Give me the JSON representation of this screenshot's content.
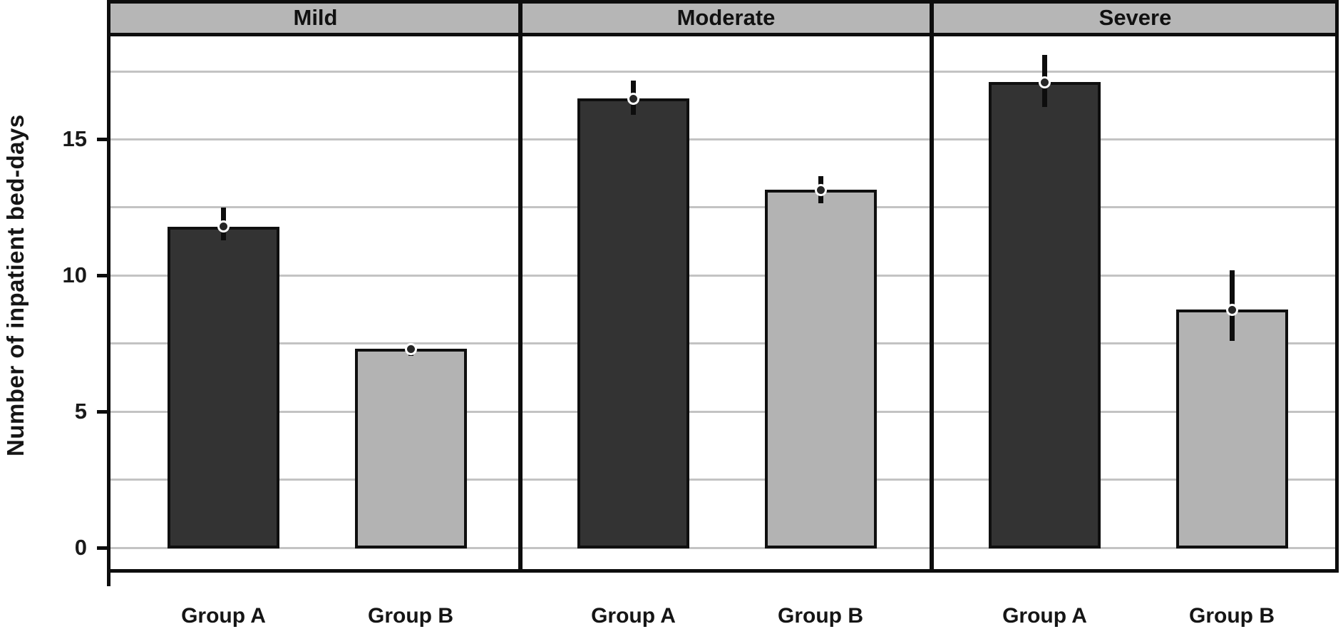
{
  "figure": {
    "background": "#ffffff"
  },
  "chart_data": {
    "type": "bar",
    "title": "",
    "ylabel": "Number of inpatient bed-days",
    "xlabel": "",
    "ylim": [
      0,
      18.8
    ],
    "yticks": [
      0,
      5,
      10,
      15
    ],
    "ytick_labels": [
      "0",
      "5",
      "10",
      "15"
    ],
    "gridlines": [
      0,
      2.5,
      5,
      7.5,
      10,
      12.5,
      15,
      17.5
    ],
    "grid_on": true,
    "legend_position": "none",
    "categories": [
      "Group A",
      "Group B"
    ],
    "panels": [
      {
        "label": "Mild",
        "bars": [
          {
            "group": "Group A",
            "value": 11.8,
            "ci_low": 11.3,
            "ci_high": 12.5,
            "fill": "#333333"
          },
          {
            "group": "Group B",
            "value": 7.3,
            "ci_low": 7.05,
            "ci_high": 7.5,
            "fill": "#b3b3b3"
          }
        ]
      },
      {
        "label": "Moderate",
        "bars": [
          {
            "group": "Group A",
            "value": 16.5,
            "ci_low": 15.9,
            "ci_high": 17.15,
            "fill": "#333333"
          },
          {
            "group": "Group B",
            "value": 13.15,
            "ci_low": 12.65,
            "ci_high": 13.65,
            "fill": "#b3b3b3"
          }
        ]
      },
      {
        "label": "Severe",
        "bars": [
          {
            "group": "Group A",
            "value": 17.1,
            "ci_low": 16.2,
            "ci_high": 18.1,
            "fill": "#333333"
          },
          {
            "group": "Group B",
            "value": 8.75,
            "ci_low": 7.6,
            "ci_high": 10.2,
            "fill": "#b3b3b3"
          }
        ]
      }
    ],
    "colors": {
      "bar_dark": "#333333",
      "bar_light": "#b3b3b3",
      "bar_border": "#0f0f0f",
      "panel_header_fill": "#b6b6b6",
      "gridline": "#c3c3c3",
      "frame": "#0d0d0d",
      "error_stem": "#0d0d0d",
      "marker_fill": "#262626",
      "marker_ring": "#ffffff",
      "text": "#151515"
    },
    "error_bar_style": "vertical stem with filled circle marker (white ring) at the mean, drawn at each bar top"
  }
}
